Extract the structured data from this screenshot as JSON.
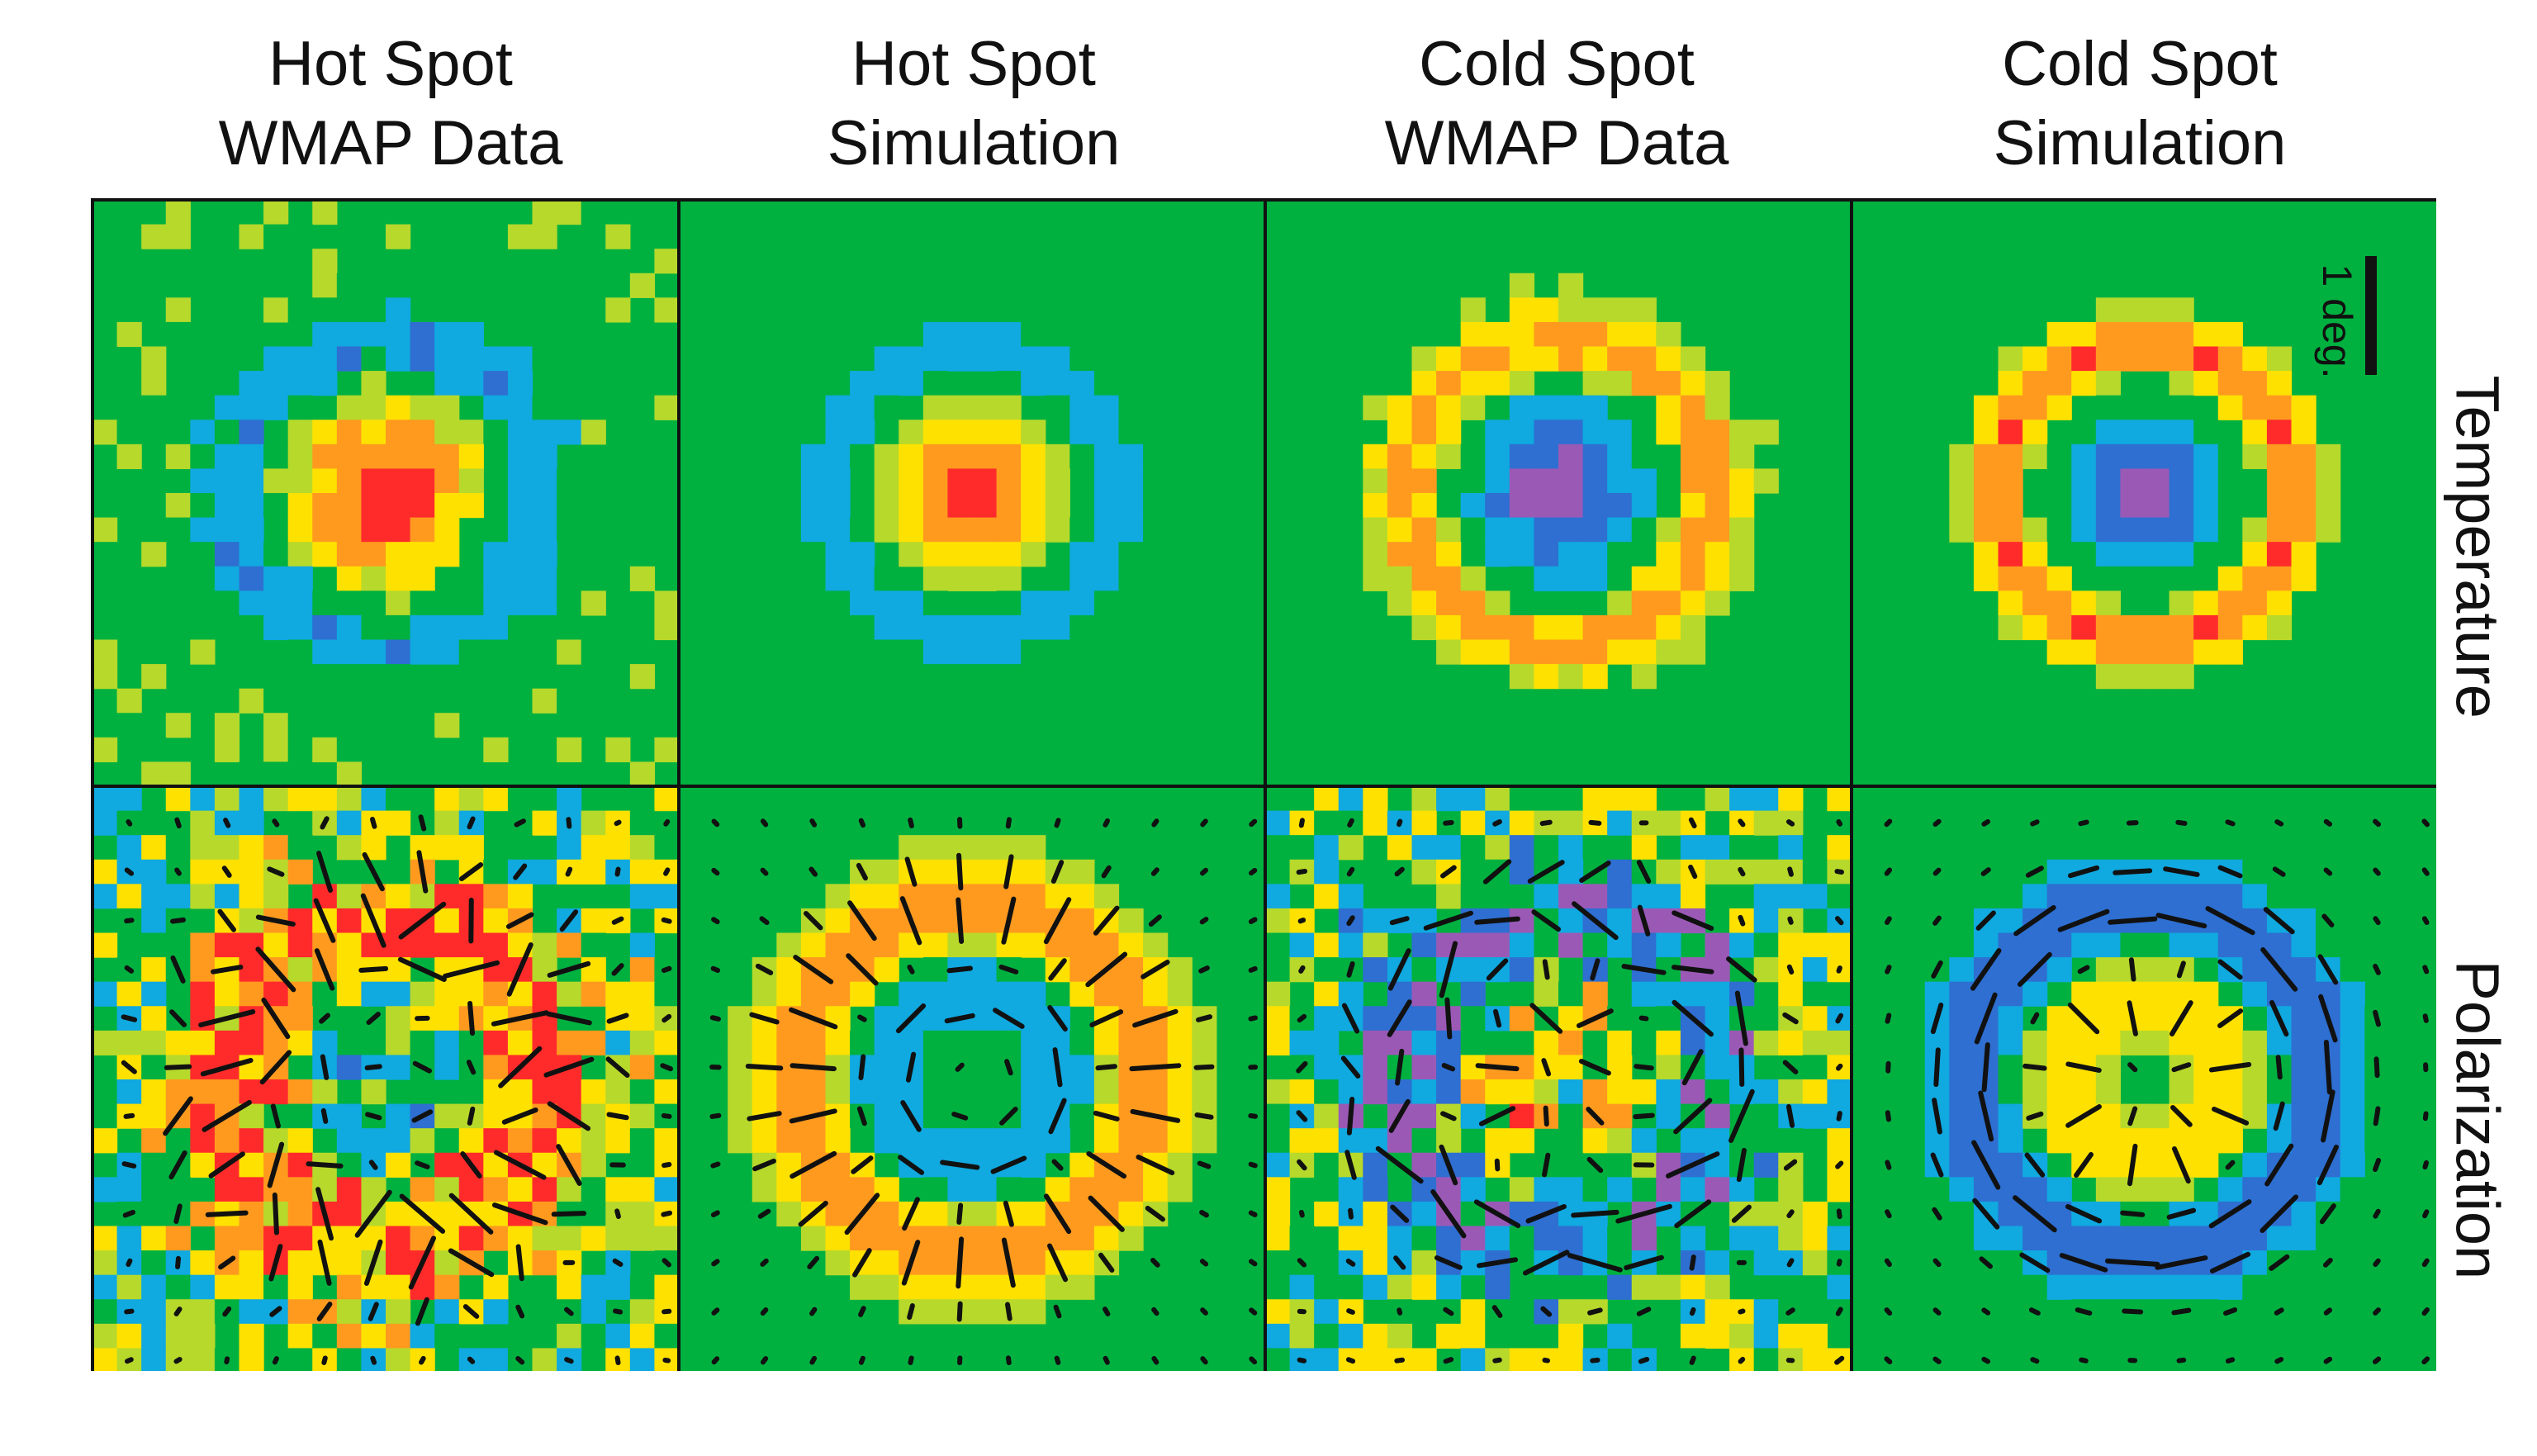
{
  "columns": [
    {
      "line1": "Hot Spot",
      "line2": "WMAP Data"
    },
    {
      "line1": "Hot Spot",
      "line2": "Simulation"
    },
    {
      "line1": "Cold Spot",
      "line2": "WMAP Data"
    },
    {
      "line1": "Cold Spot",
      "line2": "Simulation"
    }
  ],
  "rows": [
    {
      "label": "Temperature"
    },
    {
      "label": "Polarization"
    }
  ],
  "scale_bar": {
    "label": "1 deg."
  },
  "colors": {
    "background": "#00b140",
    "colormap": [
      "#9b59b6",
      "#2e6fd1",
      "#10a9e0",
      "#00b140",
      "#b7d92b",
      "#ffe100",
      "#ff9a1f",
      "#ff2b2b"
    ],
    "frame": "#111111",
    "headless_vector": "#111111"
  },
  "panels": [
    {
      "column": "Hot Spot WMAP Data",
      "row": "Temperature",
      "pattern": "hot spot: red core, blue/purple ring",
      "noise": 0.35
    },
    {
      "column": "Hot Spot Simulation",
      "row": "Temperature",
      "pattern": "hot spot: red core, cyan ring",
      "noise": 0.0
    },
    {
      "column": "Cold Spot WMAP Data",
      "row": "Temperature",
      "pattern": "cold spot: purple core, yellow/red ring",
      "noise": 0.2
    },
    {
      "column": "Cold Spot Simulation",
      "row": "Temperature",
      "pattern": "cold spot: purple core, red ring",
      "noise": 0.0
    },
    {
      "column": "Hot Spot WMAP Data",
      "row": "Polarization",
      "pattern": "noisy radial polarization ring",
      "noise": 1.0
    },
    {
      "column": "Hot Spot Simulation",
      "row": "Polarization",
      "pattern": "radial polarization ring (orange) with tangential inner ring",
      "noise": 0.0
    },
    {
      "column": "Cold Spot WMAP Data",
      "row": "Polarization",
      "pattern": "noisy tangential polarization ring",
      "noise": 1.0
    },
    {
      "column": "Cold Spot Simulation",
      "row": "Polarization",
      "pattern": "tangential polarization ring (blue) with radial inner ring",
      "noise": 0.0
    }
  ]
}
